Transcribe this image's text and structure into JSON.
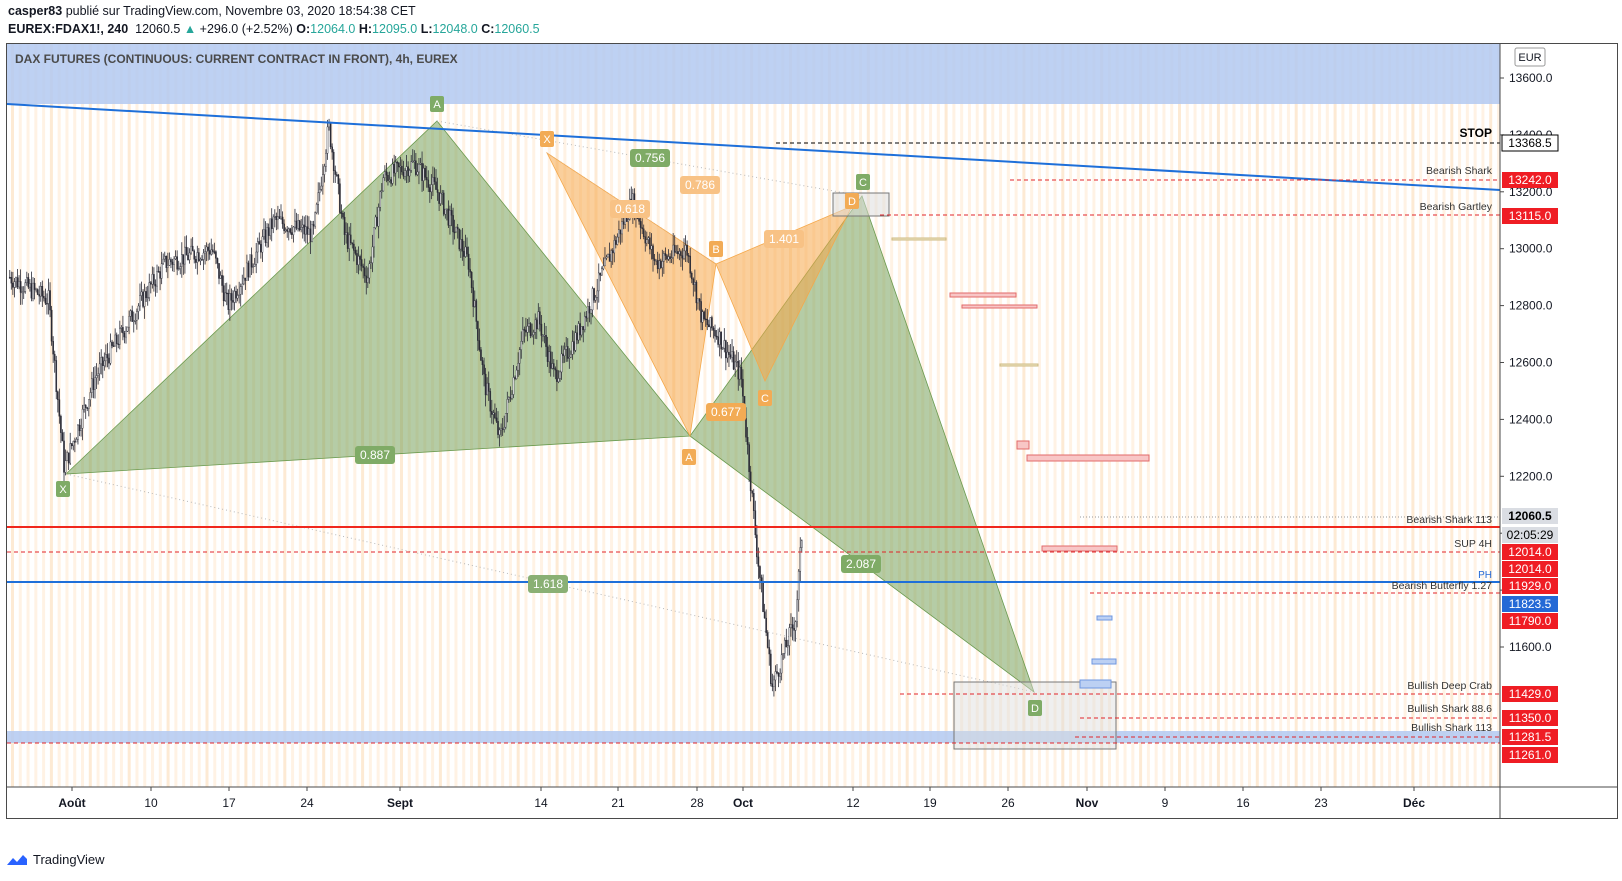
{
  "header": {
    "publisher": "casper83",
    "published_text": "publié sur TradingView.com, Novembre 03, 2020 18:54:38 CET",
    "symbol": "EUREX:FDAX1!, 240",
    "last": "12060.5",
    "change": "+296.0 (+2.52%)",
    "open_label": "O:",
    "open": "12064.0",
    "high_label": "H:",
    "high": "12095.0",
    "low_label": "L:",
    "low": "12048.0",
    "close_label": "C:",
    "close": "12060.5"
  },
  "footer": {
    "brand": "TradingView",
    "logo_icon": "tradingview-logo-icon"
  },
  "chart_data": {
    "type": "candlestick",
    "title": "DAX FUTURES (CONTINUOUS: CURRENT CONTRACT IN FRONT), 4h, EUREX",
    "currency": "EUR",
    "ylim": [
      11100,
      13660
    ],
    "y_ticks": [
      11600,
      11800,
      12000,
      12200,
      12400,
      12600,
      12800,
      13000,
      13200,
      13400,
      13600
    ],
    "x_ticks": [
      "Août",
      "10",
      "17",
      "24",
      "Sept",
      "14",
      "21",
      "28",
      "Oct",
      "12",
      "19",
      "26",
      "Nov",
      "9",
      "16",
      "23",
      "Déc"
    ],
    "price_path": [
      [
        "2020-07-24",
        12900
      ],
      [
        "2020-07-29",
        12820
      ],
      [
        "2020-07-31",
        12230
      ],
      [
        "2020-08-04",
        12550
      ],
      [
        "2020-08-10",
        12820
      ],
      [
        "2020-08-13",
        12950
      ],
      [
        "2020-08-19",
        13000
      ],
      [
        "2020-08-21",
        12800
      ],
      [
        "2020-08-24",
        12950
      ],
      [
        "2020-08-27",
        13100
      ],
      [
        "2020-09-01",
        13050
      ],
      [
        "2020-09-03",
        13430
      ],
      [
        "2020-09-05",
        13050
      ],
      [
        "2020-09-08",
        12900
      ],
      [
        "2020-09-10",
        13250
      ],
      [
        "2020-09-14",
        13300
      ],
      [
        "2020-09-17",
        13200
      ],
      [
        "2020-09-21",
        12950
      ],
      [
        "2020-09-23",
        12530
      ],
      [
        "2020-09-25",
        12330
      ],
      [
        "2020-09-28",
        12700
      ],
      [
        "2020-09-30",
        12750
      ],
      [
        "2020-10-02",
        12550
      ],
      [
        "2020-10-05",
        12700
      ],
      [
        "2020-10-08",
        12900
      ],
      [
        "2020-10-12",
        13170
      ],
      [
        "2020-10-15",
        12950
      ],
      [
        "2020-10-19",
        13000
      ],
      [
        "2020-10-21",
        12750
      ],
      [
        "2020-10-23",
        12700
      ],
      [
        "2020-10-26",
        12550
      ],
      [
        "2020-10-28",
        11950
      ],
      [
        "2020-10-30",
        11460
      ],
      [
        "2020-11-02",
        11700
      ],
      [
        "2020-11-03",
        12060.5
      ]
    ],
    "price_labels": [
      {
        "value": "13368.5",
        "kind": "stop"
      },
      {
        "value": "13242.0",
        "kind": "red"
      },
      {
        "value": "13115.0",
        "kind": "red"
      },
      {
        "value": "12060.5",
        "kind": "current"
      },
      {
        "value": "02:05:29",
        "kind": "timer"
      },
      {
        "value": "12014.0",
        "kind": "red"
      },
      {
        "value": "12014.0",
        "kind": "red"
      },
      {
        "value": "11929.0",
        "kind": "red"
      },
      {
        "value": "11823.5",
        "kind": "blue"
      },
      {
        "value": "11790.0",
        "kind": "red"
      },
      {
        "value": "11429.0",
        "kind": "red"
      },
      {
        "value": "11350.0",
        "kind": "red"
      },
      {
        "value": "11281.5",
        "kind": "red"
      },
      {
        "value": "11261.0",
        "kind": "red"
      }
    ],
    "annotations": [
      "STOP",
      "Bearish Shark",
      "Bearish Gartley",
      "Bearish Shark 113",
      "SUP 4H",
      "Bearish Butterfly 1.27",
      "PH",
      "Bullish Deep Crab",
      "Bullish Shark 88.6",
      "Bullish Shark 113"
    ],
    "pattern_points_green": [
      "X",
      "A",
      "C",
      "D"
    ],
    "pattern_points_orange": [
      "X",
      "A",
      "B",
      "C",
      "D"
    ],
    "ratios": [
      "0.756",
      "0.786",
      "0.618",
      "1.401",
      "0.677",
      "0.887",
      "2.087",
      "1.618"
    ],
    "colors": {
      "green_pattern": "#6b9a4e",
      "orange_pattern": "#f5a84a",
      "red_line": "#f0271d",
      "blue_line": "#1e6fd9",
      "zone": "#b3c9f1"
    }
  }
}
